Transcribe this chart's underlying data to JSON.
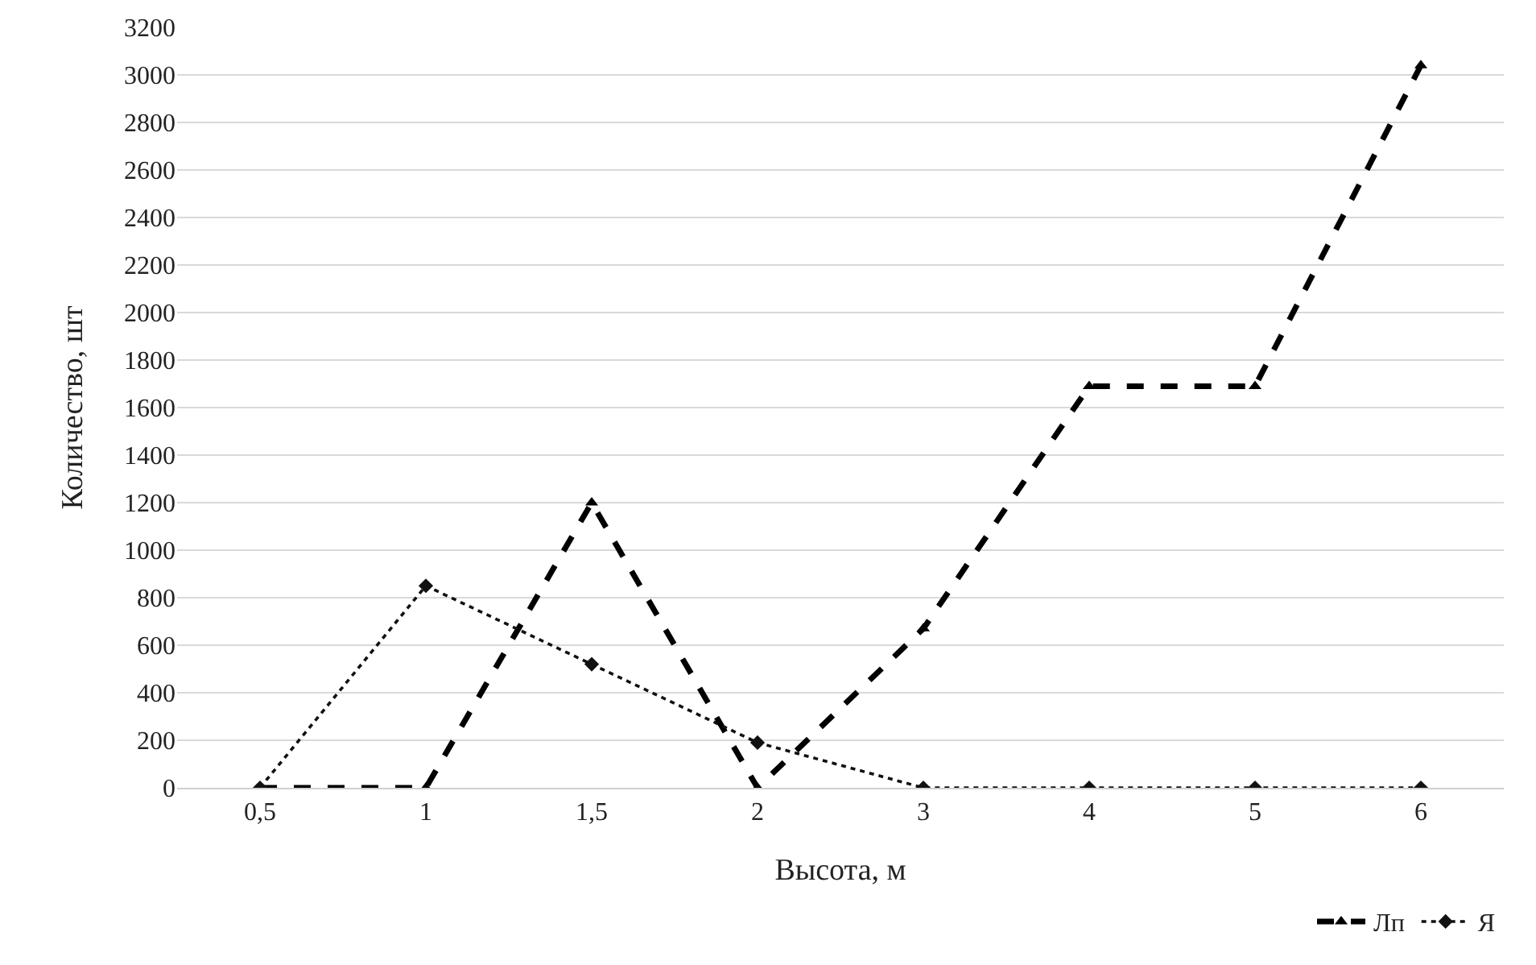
{
  "chart_data": {
    "type": "line",
    "xlabel": "Высота, м",
    "ylabel": "Количество, шт",
    "categories": [
      "0,5",
      "1",
      "1,5",
      "2",
      "3",
      "4",
      "5",
      "6"
    ],
    "series": [
      {
        "name": "Лп",
        "color": "#000000",
        "line_style": "dashed",
        "marker": "triangle",
        "values": [
          0,
          0,
          1200,
          0,
          670,
          1690,
          1690,
          3040
        ]
      },
      {
        "name": "Я",
        "color": "#111111",
        "line_style": "dotted",
        "marker": "diamond",
        "values": [
          0,
          850,
          520,
          190,
          0,
          0,
          0,
          0
        ]
      }
    ],
    "ylim": [
      0,
      3200
    ],
    "yticks": [
      0,
      200,
      400,
      600,
      800,
      1000,
      1200,
      1400,
      1600,
      1800,
      2000,
      2200,
      2400,
      2600,
      2800,
      3000,
      3200
    ],
    "grid": "y",
    "legend": "bottom right"
  }
}
